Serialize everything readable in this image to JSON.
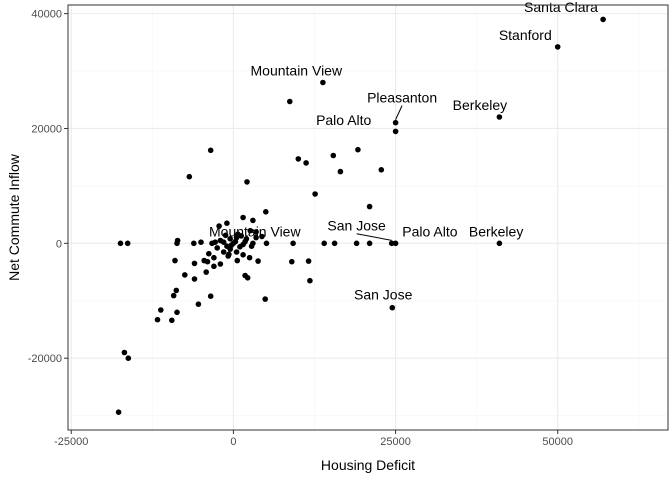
{
  "chart_data": {
    "type": "scatter",
    "xlabel": "Housing Deficit",
    "ylabel": "Net Commute Inflow",
    "xlim": [
      -25500,
      67000
    ],
    "ylim": [
      -32500,
      41500
    ],
    "x_ticks": [
      -25000,
      0,
      25000,
      50000
    ],
    "x_tick_labels": [
      "-25000",
      "0",
      "25000",
      "50000"
    ],
    "y_ticks": [
      -20000,
      0,
      20000,
      40000
    ],
    "y_tick_labels": [
      "-20000",
      "0",
      "20000",
      "40000"
    ],
    "grid": true,
    "colors": {
      "point": "#000000",
      "grid_major": "#ebebeb",
      "grid_minor": "#f5f5f5",
      "panel_border": "#333333"
    },
    "points": [
      [
        57000,
        39000
      ],
      [
        50000,
        34200
      ],
      [
        13800,
        28000
      ],
      [
        8700,
        24700
      ],
      [
        25000,
        21000
      ],
      [
        25000,
        19500
      ],
      [
        41000,
        22000
      ],
      [
        -3500,
        16200
      ],
      [
        -6800,
        11600
      ],
      [
        10000,
        14700
      ],
      [
        11200,
        14000
      ],
      [
        15400,
        15300
      ],
      [
        19200,
        16300
      ],
      [
        16500,
        12500
      ],
      [
        22800,
        12800
      ],
      [
        2100,
        10700
      ],
      [
        12600,
        8600
      ],
      [
        21000,
        6400
      ],
      [
        5000,
        5500
      ],
      [
        1500,
        4500
      ],
      [
        3000,
        4000
      ],
      [
        -1000,
        3500
      ],
      [
        -2200,
        3000
      ],
      [
        2600,
        2200
      ],
      [
        3500,
        2000
      ],
      [
        4400,
        1200
      ],
      [
        -17400,
        0
      ],
      [
        -16300,
        0
      ],
      [
        -8700,
        0
      ],
      [
        -8600,
        500
      ],
      [
        -6100,
        0
      ],
      [
        -5000,
        200
      ],
      [
        -3300,
        0
      ],
      [
        -2000,
        500
      ],
      [
        -500,
        800
      ],
      [
        500,
        1000
      ],
      [
        1800,
        300
      ],
      [
        3000,
        0
      ],
      [
        5100,
        0
      ],
      [
        9200,
        0
      ],
      [
        14000,
        0
      ],
      [
        15600,
        0
      ],
      [
        19000,
        0
      ],
      [
        21000,
        0
      ],
      [
        24400,
        0
      ],
      [
        25000,
        0
      ],
      [
        41000,
        0
      ],
      [
        -9000,
        -3000
      ],
      [
        -6000,
        -3500
      ],
      [
        -4500,
        -3000
      ],
      [
        -3000,
        -2500
      ],
      [
        -1500,
        -1500
      ],
      [
        -500,
        -1000
      ],
      [
        500,
        -1500
      ],
      [
        1500,
        -2000
      ],
      [
        2500,
        -2500
      ],
      [
        3800,
        -3100
      ],
      [
        -7500,
        -5500
      ],
      [
        -6000,
        -6200
      ],
      [
        -4200,
        -5000
      ],
      [
        -3000,
        -4000
      ],
      [
        -2000,
        -3600
      ],
      [
        -800,
        -2200
      ],
      [
        600,
        -3000
      ],
      [
        1800,
        -5600
      ],
      [
        2200,
        -6000
      ],
      [
        -8800,
        -8200
      ],
      [
        -9200,
        -9100
      ],
      [
        -3500,
        -9200
      ],
      [
        -5400,
        -10600
      ],
      [
        -8700,
        -12000
      ],
      [
        -11200,
        -11600
      ],
      [
        -11700,
        -13300
      ],
      [
        -9500,
        -13400
      ],
      [
        4900,
        -9700
      ],
      [
        9000,
        -3200
      ],
      [
        11600,
        -3100
      ],
      [
        11800,
        -6500
      ],
      [
        24500,
        -11200
      ],
      [
        -16800,
        -19000
      ],
      [
        -16200,
        -20000
      ],
      [
        -17700,
        -29400
      ],
      [
        0,
        0
      ],
      [
        -300,
        -300
      ],
      [
        300,
        300
      ],
      [
        -1000,
        -500
      ],
      [
        1000,
        -600
      ],
      [
        -1500,
        200
      ],
      [
        1500,
        -200
      ],
      [
        2000,
        800
      ],
      [
        -2500,
        -800
      ],
      [
        -3800,
        -1800
      ],
      [
        700,
        1600
      ],
      [
        -700,
        -1900
      ],
      [
        1200,
        1300
      ],
      [
        -1200,
        1400
      ],
      [
        2800,
        -500
      ],
      [
        -2800,
        200
      ],
      [
        3500,
        1000
      ],
      [
        -4000,
        -3200
      ]
    ],
    "annotations": [
      {
        "text": "Santa Clara",
        "x": 57000,
        "y": 39000,
        "label_x": 50500,
        "label_y": 40300,
        "leader": false
      },
      {
        "text": "Stanford",
        "x": 50000,
        "y": 34200,
        "label_x": 45000,
        "label_y": 35400,
        "leader": false
      },
      {
        "text": "Mountain View",
        "x": 13800,
        "y": 28000,
        "label_x": 9700,
        "label_y": 29200,
        "leader": false
      },
      {
        "text": "Pleasanton",
        "x": 25000,
        "y": 21000,
        "label_x": 26000,
        "label_y": 24500,
        "leader": true
      },
      {
        "text": "Berkeley",
        "x": 41000,
        "y": 22000,
        "label_x": 38000,
        "label_y": 23200,
        "leader": false
      },
      {
        "text": "Palo Alto",
        "x": 25000,
        "y": 19500,
        "label_x": 17000,
        "label_y": 20600,
        "leader": false
      },
      {
        "text": "Mountain View",
        "x": 9200,
        "y": 0,
        "label_x": 3300,
        "label_y": 1200,
        "leader": false
      },
      {
        "text": "San Jose",
        "x": 24400,
        "y": 0,
        "label_x": 19000,
        "label_y": 2200,
        "leader": true
      },
      {
        "text": "Palo Alto",
        "x": 25000,
        "y": 0,
        "label_x": 30300,
        "label_y": 1200,
        "leader": false
      },
      {
        "text": "Berkeley",
        "x": 41000,
        "y": 0,
        "label_x": 40500,
        "label_y": 1200,
        "leader": false
      },
      {
        "text": "San Jose",
        "x": 24500,
        "y": -11200,
        "label_x": 23100,
        "label_y": -9800,
        "leader": false
      }
    ]
  }
}
